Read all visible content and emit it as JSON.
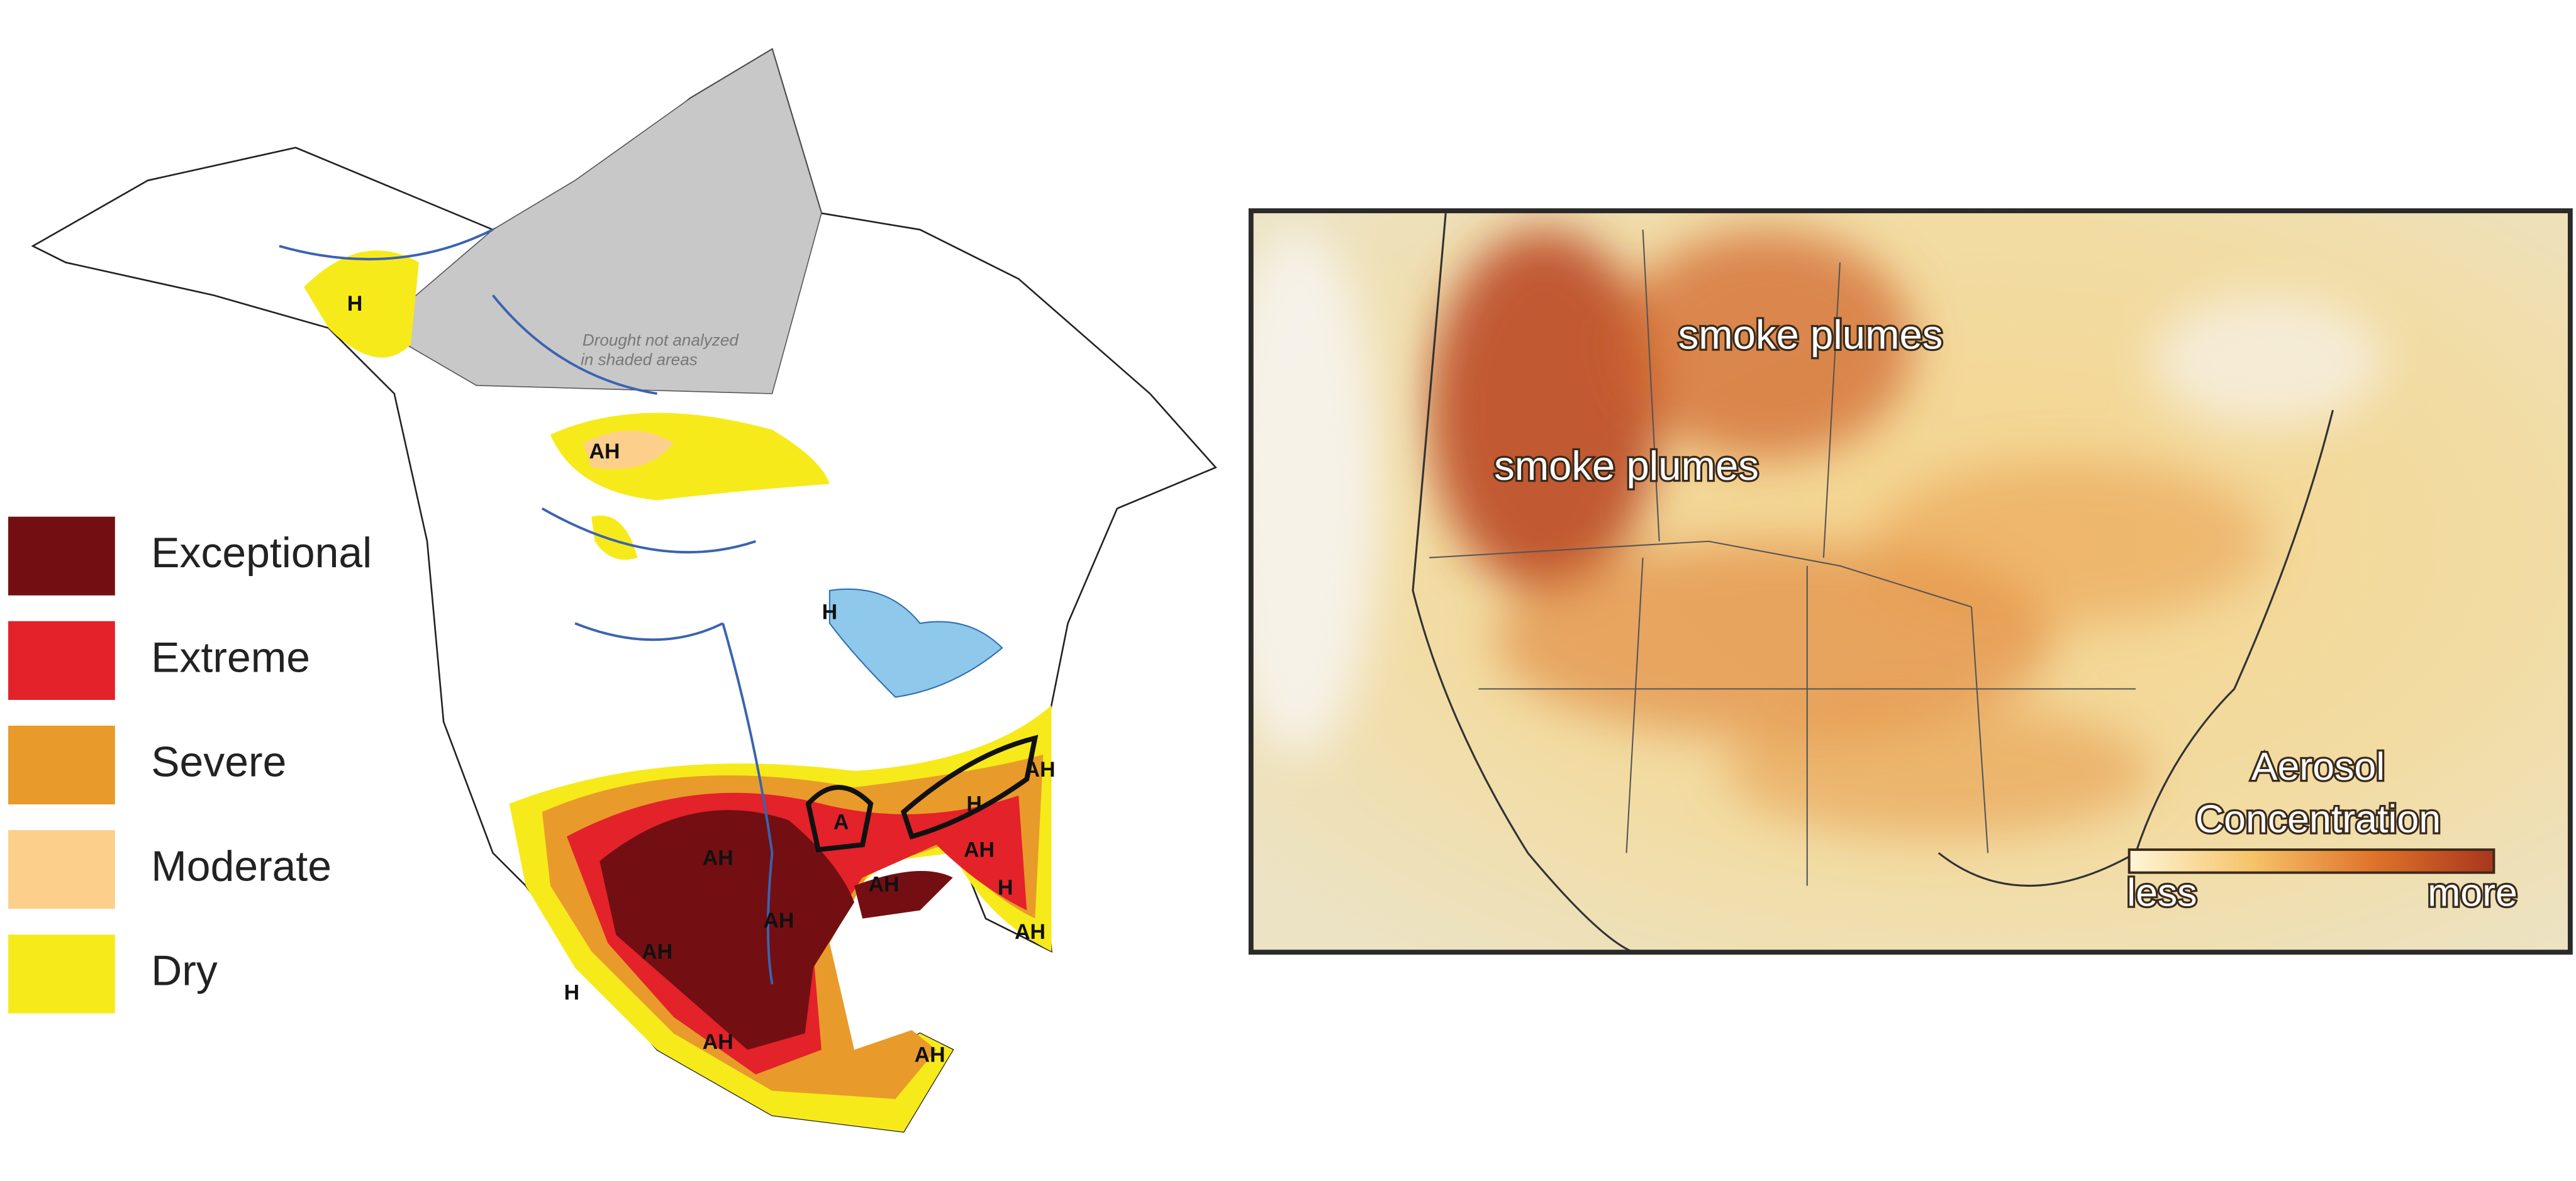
{
  "legend": {
    "items": [
      {
        "label": "Exceptional",
        "color": "#730f12"
      },
      {
        "label": "Extreme",
        "color": "#e3222a"
      },
      {
        "label": "Severe",
        "color": "#e89b2a"
      },
      {
        "label": "Moderate",
        "color": "#fcd08a"
      },
      {
        "label": "Dry",
        "color": "#f7ea1a"
      }
    ]
  },
  "drought_map": {
    "note": [
      "Drought not analyzed",
      "in shaded areas"
    ],
    "labels": [
      "H",
      "AH",
      "H",
      "A",
      "AH",
      "AH",
      "AH",
      "AH",
      "AH",
      "H",
      "AH",
      "H",
      "AH",
      "H",
      "AH",
      "AH"
    ]
  },
  "aerosol_map": {
    "annotations": [
      "smoke plumes",
      "smoke plumes"
    ],
    "colorbar": {
      "title": [
        "Aerosol",
        "Concentration"
      ],
      "low": "less",
      "high": "more",
      "colors": [
        "#fdf6d8",
        "#f6c46a",
        "#e0742a",
        "#a8361d"
      ]
    }
  }
}
